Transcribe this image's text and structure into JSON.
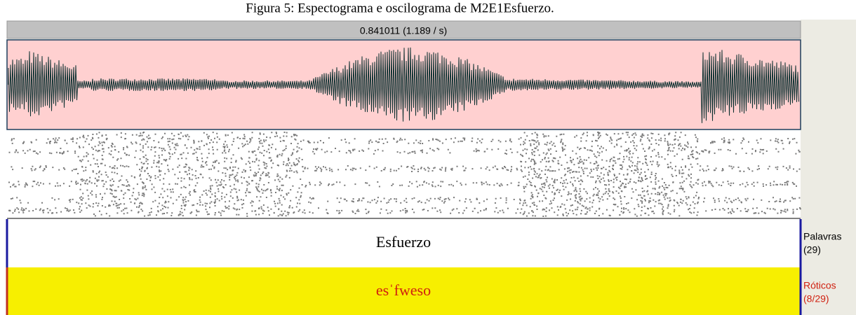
{
  "caption": "Figura 5: Espectograma e oscilograma de M2E1Esfuerzo.",
  "selection_label": "0.841011 (1.189 / s)",
  "tiers": [
    {
      "text": "Esfuerzo",
      "name": "Palavras",
      "count": "(29)"
    },
    {
      "text": "esˈfweso",
      "name": "Róticos",
      "count": "(8/29)"
    }
  ]
}
